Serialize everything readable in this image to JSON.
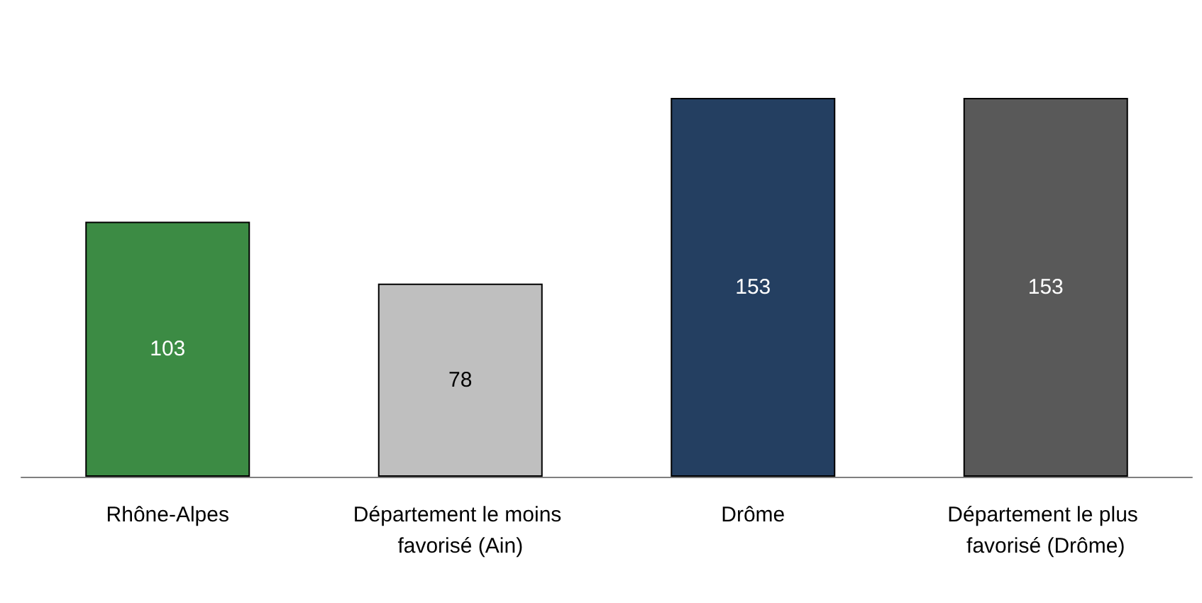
{
  "chart_data": {
    "type": "bar",
    "categories": [
      "Rhône-Alpes",
      "Département le moins favorisé (Ain)",
      "Drôme",
      "Département le plus favorisé (Drôme)"
    ],
    "values": [
      103,
      78,
      153,
      153
    ],
    "colors": [
      "#3c8b44",
      "#bfbfbf",
      "#243f61",
      "#595959"
    ],
    "data_labels": true
  }
}
